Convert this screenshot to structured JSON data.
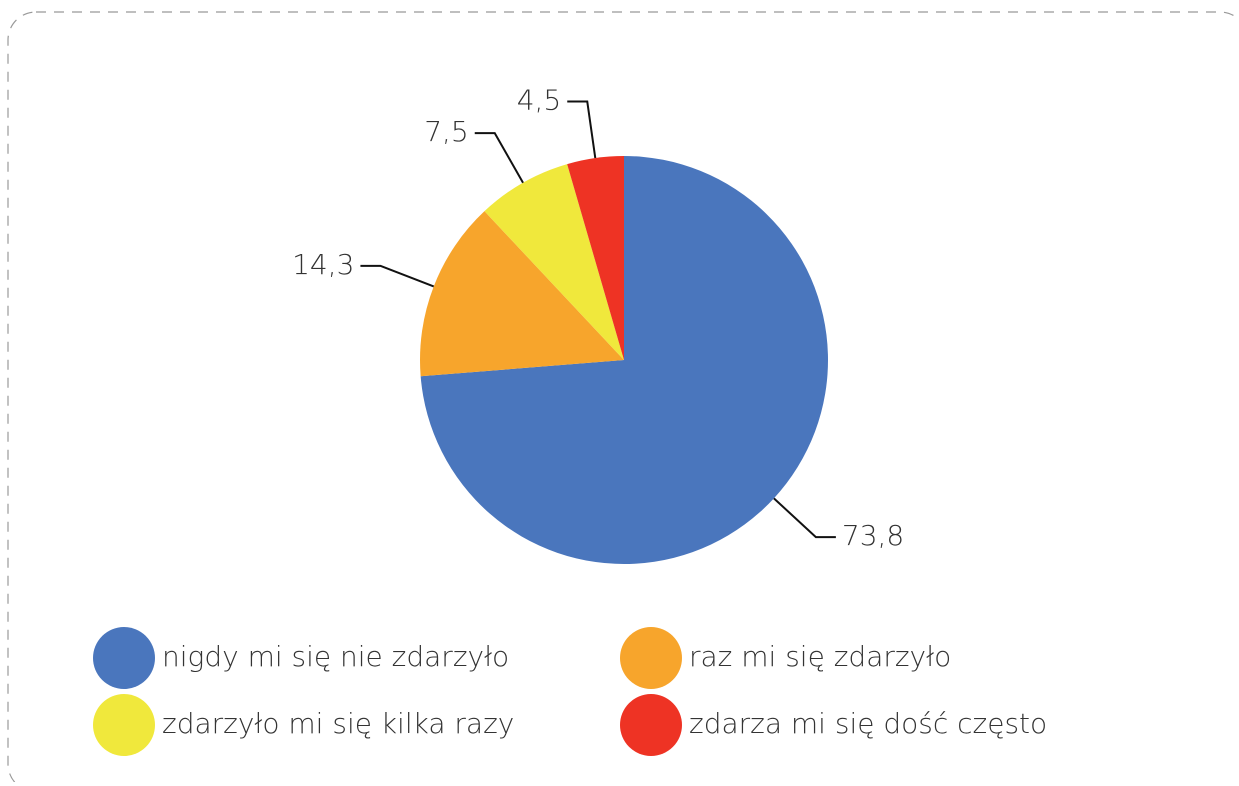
{
  "chart_data": {
    "type": "pie",
    "categories": [
      "nigdy mi się nie zdarzyło",
      "raz mi się zdarzyło",
      "zdarzyło mi się kilka razy",
      "zdarza mi się dość często"
    ],
    "values": [
      73.8,
      14.3,
      7.5,
      4.5
    ],
    "value_labels": [
      "73,8",
      "14,3",
      "7,5",
      "4,5"
    ],
    "colors": [
      "#4a76bd",
      "#f7a52c",
      "#f0e83c",
      "#ee3324"
    ]
  }
}
